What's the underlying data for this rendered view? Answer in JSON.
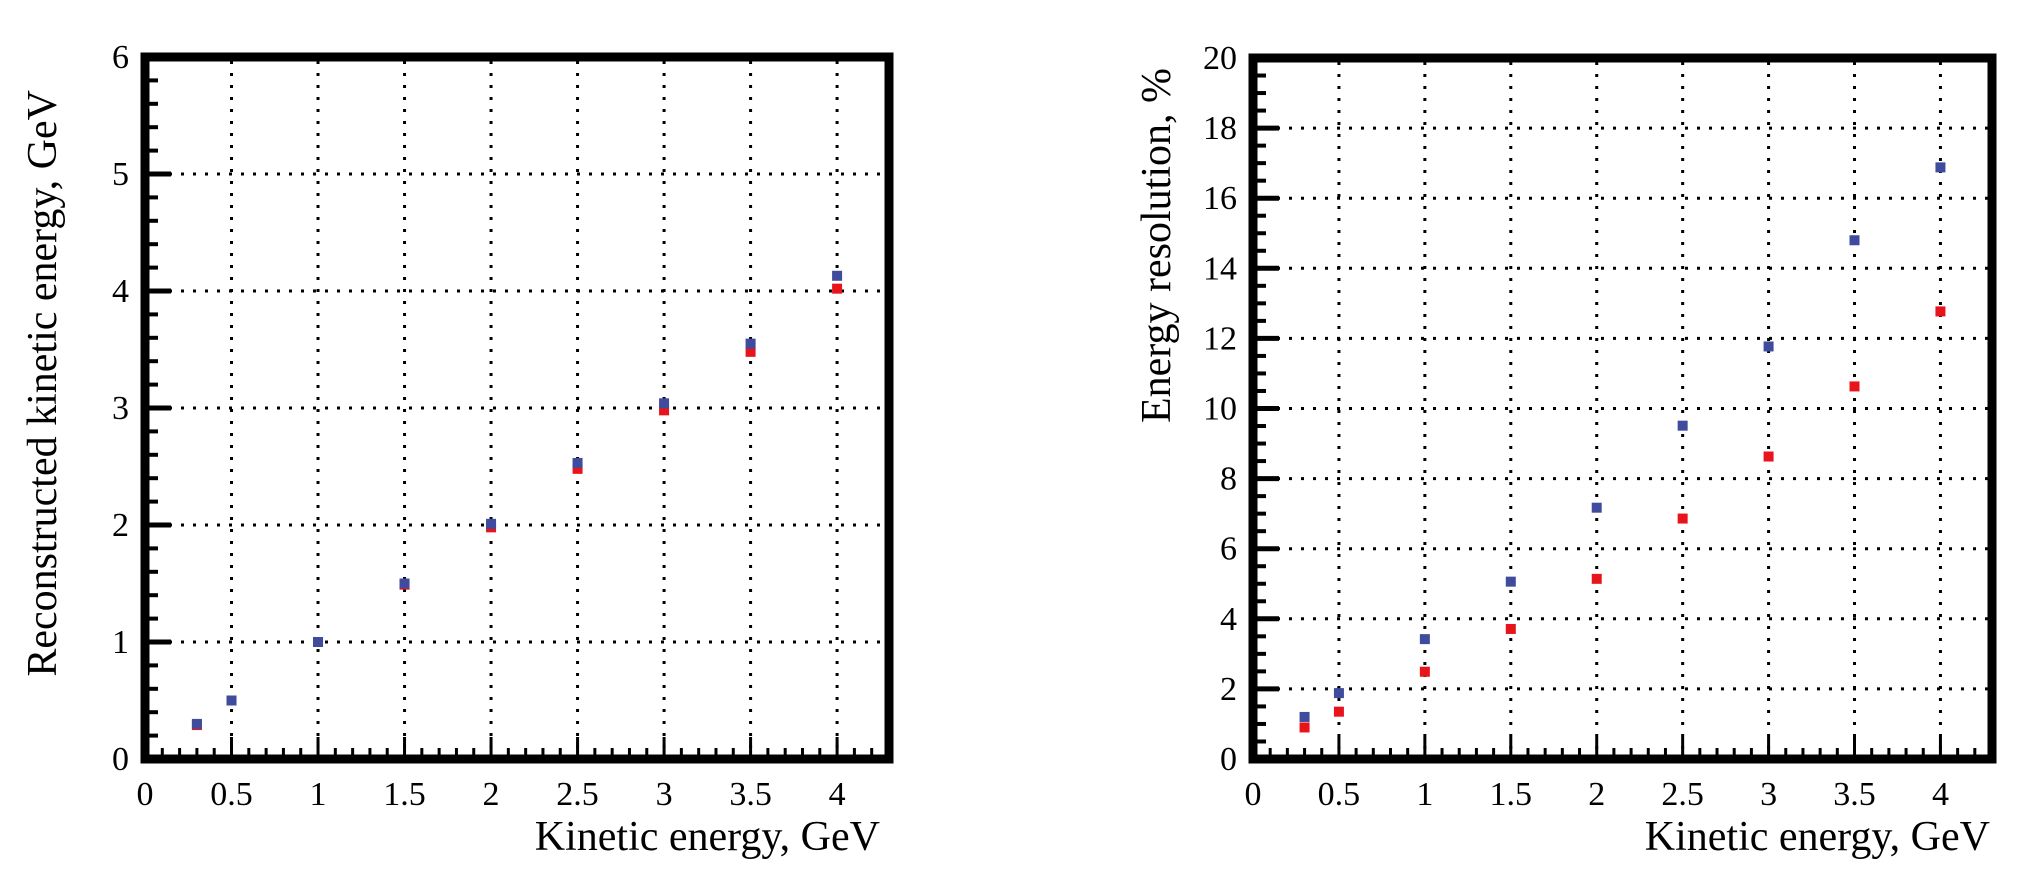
{
  "chart_data": [
    {
      "type": "scatter",
      "title": "",
      "xlabel": "Kinetic energy, GeV",
      "ylabel": "Reconstructed kinetic energy, GeV",
      "xlim": [
        0,
        4.3
      ],
      "ylim": [
        0,
        6
      ],
      "xticks": [
        0,
        0.5,
        1,
        1.5,
        2,
        2.5,
        3,
        3.5,
        4
      ],
      "xtick_labels": [
        "0",
        "0.5",
        "1",
        "1.5",
        "2",
        "2.5",
        "3",
        "3.5",
        "4"
      ],
      "x_minor_step": 0.1,
      "yticks": [
        0,
        1,
        2,
        3,
        4,
        5,
        6
      ],
      "ytick_labels": [
        "0",
        "1",
        "2",
        "3",
        "4",
        "5",
        "6"
      ],
      "y_minor_step": 0.2,
      "grid": true,
      "grid_style": "dotted",
      "legend": null,
      "x": [
        0.3,
        0.5,
        1,
        1.5,
        2,
        2.5,
        3,
        3.5,
        4
      ],
      "series": [
        {
          "name": "red series",
          "color": "#e8141c",
          "values": [
            0.29,
            0.5,
            1.0,
            1.49,
            1.98,
            2.48,
            2.98,
            3.48,
            4.02
          ]
        },
        {
          "name": "blue series",
          "color": "#3f4c9e",
          "values": [
            0.3,
            0.5,
            1.0,
            1.5,
            2.01,
            2.53,
            3.04,
            3.55,
            4.13
          ]
        }
      ]
    },
    {
      "type": "scatter",
      "title": "",
      "xlabel": "Kinetic energy, GeV",
      "ylabel": "Energy resolution, %",
      "xlim": [
        0,
        4.3
      ],
      "ylim": [
        0,
        20
      ],
      "xticks": [
        0,
        0.5,
        1,
        1.5,
        2,
        2.5,
        3,
        3.5,
        4
      ],
      "xtick_labels": [
        "0",
        "0.5",
        "1",
        "1.5",
        "2",
        "2.5",
        "3",
        "3.5",
        "4"
      ],
      "x_minor_step": 0.1,
      "yticks": [
        0,
        2,
        4,
        6,
        8,
        10,
        12,
        14,
        16,
        18,
        20
      ],
      "ytick_labels": [
        "0",
        "2",
        "4",
        "6",
        "8",
        "10",
        "12",
        "14",
        "16",
        "18",
        "20"
      ],
      "y_minor_step": 0.5,
      "grid": true,
      "grid_style": "dotted",
      "legend": null,
      "x": [
        0.3,
        0.5,
        1,
        1.5,
        2,
        2.5,
        3,
        3.5,
        4
      ],
      "series": [
        {
          "name": "red series",
          "color": "#e8141c",
          "values": [
            0.9,
            1.35,
            2.49,
            3.71,
            5.14,
            6.86,
            8.63,
            10.63,
            12.77
          ]
        },
        {
          "name": "blue series",
          "color": "#3f4c9e",
          "values": [
            1.2,
            1.88,
            3.42,
            5.06,
            7.17,
            9.51,
            11.77,
            14.8,
            16.88
          ]
        }
      ]
    }
  ]
}
